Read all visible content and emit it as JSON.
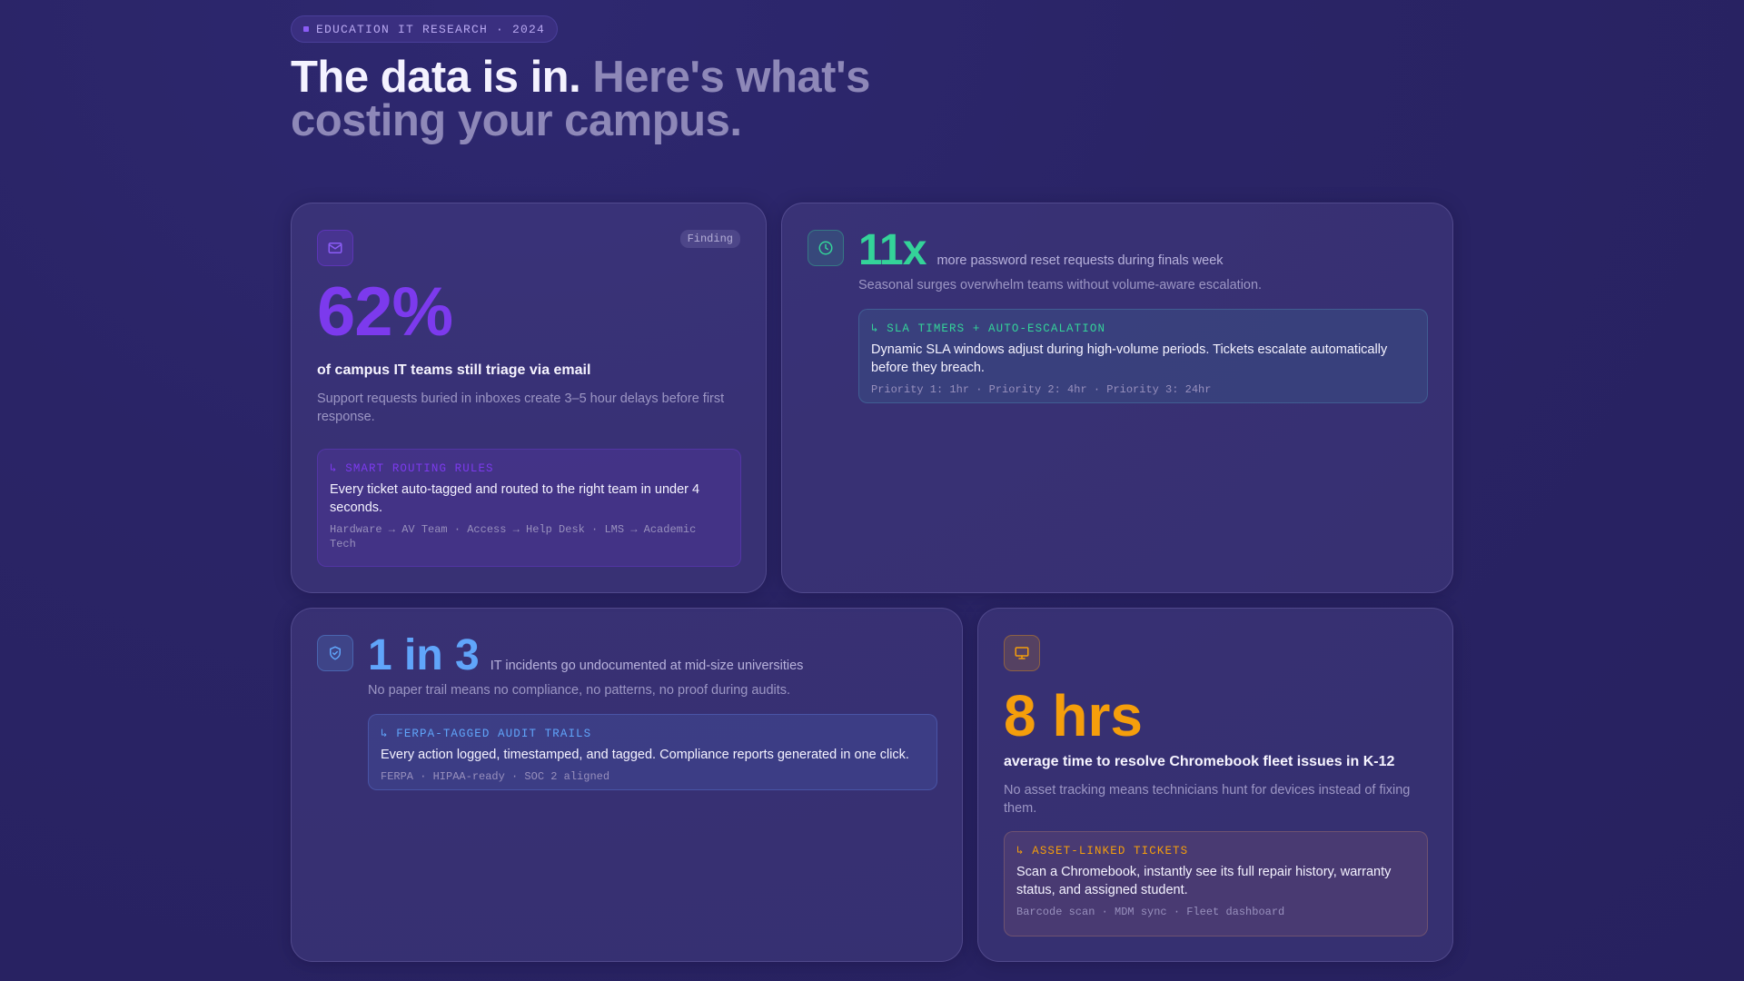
{
  "badge": "EDUCATION IT RESEARCH · 2024",
  "headline": {
    "primary": "The data is in.",
    "secondary": "Here's what's costing your campus."
  },
  "colors": {
    "purple": "#7c3aed",
    "green": "#34d399",
    "blue": "#60a5fa",
    "orange": "#f59e0b"
  },
  "cards": {
    "email": {
      "icon": "mail-icon",
      "tag": "Finding",
      "stat": "62%",
      "lead": "of campus IT teams still triage via email",
      "sub": "Support requests buried in inboxes create 3–5 hour delays before first response.",
      "solution": {
        "title": "↳ SMART ROUTING RULES",
        "text": "Every ticket auto-tagged and routed to the right team in under 4 seconds.",
        "meta": "Hardware → AV Team · Access → Help Desk · LMS → Academic Tech"
      }
    },
    "password": {
      "icon": "clock-icon",
      "stat": "11x",
      "lead": "more password reset requests during finals week",
      "sub": "Seasonal surges overwhelm teams without volume-aware escalation.",
      "solution": {
        "title": "↳ SLA TIMERS + AUTO-ESCALATION",
        "text": "Dynamic SLA windows adjust during high-volume periods. Tickets escalate automatically before they breach.",
        "meta": "Priority 1: 1hr · Priority 2: 4hr · Priority 3: 24hr"
      }
    },
    "incidents": {
      "icon": "shield-check-icon",
      "stat": "1 in 3",
      "lead": "IT incidents go undocumented at mid-size universities",
      "sub": "No paper trail means no compliance, no patterns, no proof during audits.",
      "solution": {
        "title": "↳ FERPA-TAGGED AUDIT TRAILS",
        "text": "Every action logged, timestamped, and tagged. Compliance reports generated in one click.",
        "meta": "FERPA · HIPAA-ready · SOC 2 aligned"
      }
    },
    "chromebook": {
      "icon": "monitor-icon",
      "stat": "8 hrs",
      "lead": "average time to resolve Chromebook fleet issues in K-12",
      "sub": "No asset tracking means technicians hunt for devices instead of fixing them.",
      "solution": {
        "title": "↳ ASSET-LINKED TICKETS",
        "text": "Scan a Chromebook, instantly see its full repair history, warranty status, and assigned student.",
        "meta": "Barcode scan · MDM sync · Fleet dashboard"
      }
    }
  }
}
